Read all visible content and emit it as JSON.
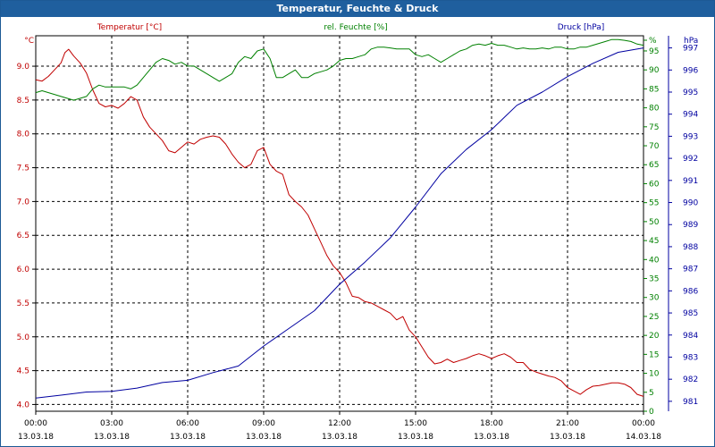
{
  "window": {
    "title": "Temperatur, Feuchte & Druck"
  },
  "colors": {
    "temperature": "#c00000",
    "humidity": "#008000",
    "pressure": "#0000a0",
    "axis": "#000000",
    "grid": "#000000",
    "title_bg": "#1f5f9e"
  },
  "chart_data": {
    "type": "line",
    "x": {
      "range": [
        "00:00",
        "24:00"
      ],
      "tick_times": [
        "00:00",
        "03:00",
        "06:00",
        "09:00",
        "12:00",
        "15:00",
        "18:00",
        "21:00",
        "00:00"
      ],
      "tick_dates": [
        "13.03.18",
        "13.03.18",
        "13.03.18",
        "13.03.18",
        "13.03.18",
        "13.03.18",
        "13.03.18",
        "13.03.18",
        "14.03.18"
      ]
    },
    "axes": {
      "temperature": {
        "label": "Temperatur [°C]",
        "unit": "°C",
        "range": [
          3.9,
          9.45
        ],
        "ticks": [
          "4.0",
          "4.5",
          "5.0",
          "5.5",
          "6.0",
          "6.5",
          "7.0",
          "7.5",
          "8.0",
          "8.5",
          "9.0"
        ]
      },
      "humidity": {
        "label": "rel. Feuchte [%]",
        "unit": "%",
        "range": [
          0,
          99
        ],
        "ticks": [
          "0",
          "5",
          "10",
          "15",
          "20",
          "25",
          "30",
          "35",
          "40",
          "45",
          "50",
          "55",
          "60",
          "65",
          "70",
          "75",
          "80",
          "85",
          "90",
          "95",
          "%"
        ]
      },
      "pressure": {
        "label": "Druck [hPa]",
        "unit": "hPa",
        "range": [
          980.55,
          997.55
        ],
        "ticks": [
          "981",
          "982",
          "983",
          "984",
          "985",
          "986",
          "987",
          "988",
          "989",
          "990",
          "991",
          "992",
          "993",
          "994",
          "995",
          "996",
          "997"
        ]
      }
    },
    "grid": true,
    "series": [
      {
        "name": "Temperatur [°C]",
        "axis": "temperature",
        "points": [
          [
            0,
            8.8
          ],
          [
            0.25,
            8.78
          ],
          [
            0.5,
            8.85
          ],
          [
            0.75,
            8.95
          ],
          [
            1.0,
            9.05
          ],
          [
            1.15,
            9.2
          ],
          [
            1.3,
            9.25
          ],
          [
            1.5,
            9.15
          ],
          [
            1.75,
            9.05
          ],
          [
            2.0,
            8.9
          ],
          [
            2.25,
            8.65
          ],
          [
            2.5,
            8.45
          ],
          [
            2.75,
            8.4
          ],
          [
            3.0,
            8.42
          ],
          [
            3.25,
            8.38
          ],
          [
            3.5,
            8.45
          ],
          [
            3.75,
            8.55
          ],
          [
            4.0,
            8.5
          ],
          [
            4.25,
            8.25
          ],
          [
            4.5,
            8.1
          ],
          [
            4.75,
            8.0
          ],
          [
            5.0,
            7.9
          ],
          [
            5.25,
            7.75
          ],
          [
            5.5,
            7.72
          ],
          [
            5.75,
            7.8
          ],
          [
            6.0,
            7.88
          ],
          [
            6.25,
            7.85
          ],
          [
            6.5,
            7.92
          ],
          [
            6.75,
            7.95
          ],
          [
            7.0,
            7.97
          ],
          [
            7.25,
            7.95
          ],
          [
            7.5,
            7.85
          ],
          [
            7.75,
            7.7
          ],
          [
            8.0,
            7.58
          ],
          [
            8.25,
            7.5
          ],
          [
            8.5,
            7.55
          ],
          [
            8.75,
            7.75
          ],
          [
            9.0,
            7.8
          ],
          [
            9.25,
            7.55
          ],
          [
            9.5,
            7.45
          ],
          [
            9.75,
            7.4
          ],
          [
            10.0,
            7.1
          ],
          [
            10.25,
            7.0
          ],
          [
            10.5,
            6.92
          ],
          [
            10.75,
            6.8
          ],
          [
            11.0,
            6.6
          ],
          [
            11.25,
            6.4
          ],
          [
            11.5,
            6.2
          ],
          [
            11.75,
            6.05
          ],
          [
            12.0,
            5.95
          ],
          [
            12.25,
            5.8
          ],
          [
            12.5,
            5.6
          ],
          [
            12.75,
            5.58
          ],
          [
            13.0,
            5.52
          ],
          [
            13.25,
            5.5
          ],
          [
            13.5,
            5.45
          ],
          [
            13.75,
            5.4
          ],
          [
            14.0,
            5.35
          ],
          [
            14.25,
            5.25
          ],
          [
            14.5,
            5.3
          ],
          [
            14.75,
            5.1
          ],
          [
            15.0,
            5.0
          ],
          [
            15.25,
            4.85
          ],
          [
            15.5,
            4.7
          ],
          [
            15.75,
            4.6
          ],
          [
            16.0,
            4.62
          ],
          [
            16.25,
            4.67
          ],
          [
            16.5,
            4.62
          ],
          [
            16.75,
            4.65
          ],
          [
            17.0,
            4.68
          ],
          [
            17.25,
            4.72
          ],
          [
            17.5,
            4.75
          ],
          [
            17.75,
            4.72
          ],
          [
            18.0,
            4.68
          ],
          [
            18.25,
            4.72
          ],
          [
            18.5,
            4.75
          ],
          [
            18.75,
            4.7
          ],
          [
            19.0,
            4.62
          ],
          [
            19.25,
            4.62
          ],
          [
            19.5,
            4.52
          ],
          [
            19.75,
            4.48
          ],
          [
            20.0,
            4.45
          ],
          [
            20.25,
            4.42
          ],
          [
            20.5,
            4.4
          ],
          [
            20.75,
            4.35
          ],
          [
            21.0,
            4.25
          ],
          [
            21.25,
            4.2
          ],
          [
            21.5,
            4.15
          ],
          [
            21.75,
            4.22
          ],
          [
            22.0,
            4.27
          ],
          [
            22.25,
            4.28
          ],
          [
            22.5,
            4.3
          ],
          [
            22.75,
            4.32
          ],
          [
            23.0,
            4.32
          ],
          [
            23.25,
            4.3
          ],
          [
            23.5,
            4.25
          ],
          [
            23.75,
            4.15
          ],
          [
            24.0,
            4.12
          ]
        ]
      },
      {
        "name": "rel. Feuchte [%]",
        "axis": "humidity",
        "points": [
          [
            0,
            84
          ],
          [
            0.25,
            84.5
          ],
          [
            0.5,
            84
          ],
          [
            1.0,
            83
          ],
          [
            1.25,
            82.5
          ],
          [
            1.5,
            82
          ],
          [
            2.0,
            83
          ],
          [
            2.25,
            85
          ],
          [
            2.5,
            86
          ],
          [
            2.75,
            85.5
          ],
          [
            3.0,
            85.5
          ],
          [
            3.25,
            85.5
          ],
          [
            3.5,
            85.5
          ],
          [
            3.75,
            85
          ],
          [
            4.0,
            86
          ],
          [
            4.25,
            88
          ],
          [
            4.5,
            90
          ],
          [
            4.75,
            92
          ],
          [
            5.0,
            93
          ],
          [
            5.25,
            92.5
          ],
          [
            5.5,
            91.5
          ],
          [
            5.75,
            92
          ],
          [
            6.0,
            91
          ],
          [
            6.25,
            91
          ],
          [
            6.5,
            90
          ],
          [
            6.75,
            89
          ],
          [
            7.0,
            88
          ],
          [
            7.25,
            87
          ],
          [
            7.5,
            88
          ],
          [
            7.75,
            89
          ],
          [
            8.0,
            92
          ],
          [
            8.25,
            93.5
          ],
          [
            8.5,
            93
          ],
          [
            8.75,
            95
          ],
          [
            9.0,
            95.5
          ],
          [
            9.25,
            93
          ],
          [
            9.5,
            88
          ],
          [
            9.75,
            88
          ],
          [
            10.0,
            89
          ],
          [
            10.25,
            90
          ],
          [
            10.5,
            88
          ],
          [
            10.75,
            88
          ],
          [
            11.0,
            89
          ],
          [
            11.25,
            89.5
          ],
          [
            11.5,
            90
          ],
          [
            11.75,
            91
          ],
          [
            12.0,
            92.5
          ],
          [
            12.25,
            93
          ],
          [
            12.5,
            93
          ],
          [
            12.75,
            93.5
          ],
          [
            13.0,
            94
          ],
          [
            13.25,
            95.5
          ],
          [
            13.5,
            96
          ],
          [
            13.75,
            96
          ],
          [
            14.0,
            95.8
          ],
          [
            14.25,
            95.5
          ],
          [
            14.5,
            95.5
          ],
          [
            14.75,
            95.5
          ],
          [
            15.0,
            94
          ],
          [
            15.25,
            93.5
          ],
          [
            15.5,
            94
          ],
          [
            15.75,
            93
          ],
          [
            16.0,
            92
          ],
          [
            16.25,
            93
          ],
          [
            16.5,
            94
          ],
          [
            16.75,
            95
          ],
          [
            17.0,
            95.5
          ],
          [
            17.25,
            96.5
          ],
          [
            17.5,
            96.8
          ],
          [
            17.75,
            96.5
          ],
          [
            18.0,
            97
          ],
          [
            18.25,
            96.5
          ],
          [
            18.5,
            96.5
          ],
          [
            18.75,
            96
          ],
          [
            19.0,
            95.5
          ],
          [
            19.25,
            95.8
          ],
          [
            19.5,
            95.5
          ],
          [
            19.75,
            95.5
          ],
          [
            20.0,
            95.8
          ],
          [
            20.25,
            95.5
          ],
          [
            20.5,
            96
          ],
          [
            20.75,
            96
          ],
          [
            21.0,
            95.5
          ],
          [
            21.25,
            95.5
          ],
          [
            21.5,
            96
          ],
          [
            21.75,
            96
          ],
          [
            22.0,
            96.5
          ],
          [
            22.25,
            97
          ],
          [
            22.5,
            97.5
          ],
          [
            22.75,
            98
          ],
          [
            23.0,
            98
          ],
          [
            23.25,
            97.8
          ],
          [
            23.5,
            97.5
          ],
          [
            23.75,
            96.8
          ],
          [
            24.0,
            96.5
          ]
        ]
      },
      {
        "name": "Druck [hPa]",
        "axis": "pressure",
        "points": [
          [
            0,
            981.15
          ],
          [
            1.0,
            981.28
          ],
          [
            2.0,
            981.42
          ],
          [
            3.0,
            981.45
          ],
          [
            4.0,
            981.6
          ],
          [
            5.0,
            981.85
          ],
          [
            6.0,
            981.95
          ],
          [
            7.0,
            982.3
          ],
          [
            8.0,
            982.6
          ],
          [
            9.0,
            983.5
          ],
          [
            10.0,
            984.3
          ],
          [
            11.0,
            985.1
          ],
          [
            12.0,
            986.3
          ],
          [
            13.0,
            987.3
          ],
          [
            14.0,
            988.4
          ],
          [
            15.0,
            989.8
          ],
          [
            16.0,
            991.3
          ],
          [
            17.0,
            992.4
          ],
          [
            18.0,
            993.3
          ],
          [
            19.0,
            994.4
          ],
          [
            20.0,
            995.0
          ],
          [
            21.0,
            995.7
          ],
          [
            22.0,
            996.3
          ],
          [
            23.0,
            996.8
          ],
          [
            24.0,
            997.0
          ]
        ]
      }
    ]
  }
}
